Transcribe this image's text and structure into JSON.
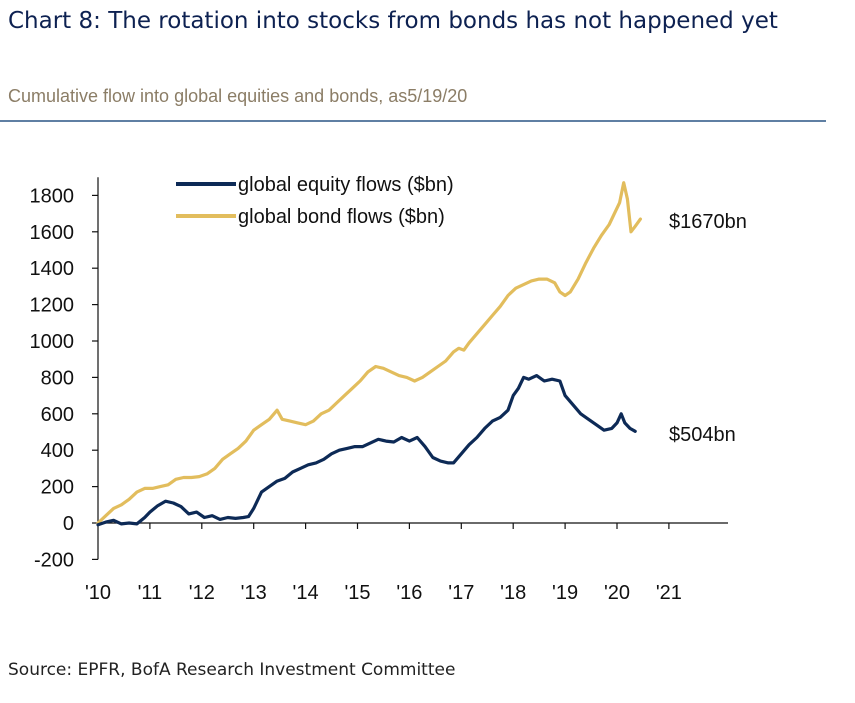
{
  "title": "Chart 8: The rotation into stocks from bonds has not happened yet",
  "subtitle": "Cumulative flow into global equities and bonds, as5/19/20",
  "source": "Source: EPFR, BofA Research Investment Committee",
  "chart_data": {
    "type": "line",
    "ylim": [
      -200,
      1900
    ],
    "y_ticks": [
      "1800",
      "1600",
      "1400",
      "1200",
      "1000",
      "800",
      "600",
      "400",
      "200",
      "0",
      "-200"
    ],
    "x_ticks": [
      "'10",
      "'11",
      "'12",
      "'13",
      "'14",
      "'15",
      "'16",
      "'17",
      "'18",
      "'19",
      "'20",
      "'21"
    ],
    "xlim": [
      2010,
      2021.5
    ],
    "grid": false,
    "legend_position": "top-center",
    "series": [
      {
        "name": "global equity flows ($bn)",
        "color": "#0d2a56",
        "end_label": "$504bn",
        "points": [
          [
            2010.0,
            -10
          ],
          [
            2010.15,
            5
          ],
          [
            2010.3,
            15
          ],
          [
            2010.45,
            -5
          ],
          [
            2010.6,
            0
          ],
          [
            2010.75,
            -5
          ],
          [
            2010.9,
            30
          ],
          [
            2011.0,
            60
          ],
          [
            2011.15,
            95
          ],
          [
            2011.3,
            120
          ],
          [
            2011.45,
            110
          ],
          [
            2011.6,
            90
          ],
          [
            2011.75,
            50
          ],
          [
            2011.9,
            60
          ],
          [
            2012.05,
            30
          ],
          [
            2012.2,
            40
          ],
          [
            2012.35,
            20
          ],
          [
            2012.5,
            30
          ],
          [
            2012.65,
            25
          ],
          [
            2012.8,
            30
          ],
          [
            2012.9,
            35
          ],
          [
            2013.0,
            80
          ],
          [
            2013.15,
            170
          ],
          [
            2013.3,
            200
          ],
          [
            2013.45,
            230
          ],
          [
            2013.6,
            245
          ],
          [
            2013.75,
            280
          ],
          [
            2013.9,
            300
          ],
          [
            2014.05,
            320
          ],
          [
            2014.2,
            330
          ],
          [
            2014.35,
            350
          ],
          [
            2014.5,
            380
          ],
          [
            2014.65,
            400
          ],
          [
            2014.8,
            410
          ],
          [
            2014.95,
            420
          ],
          [
            2015.1,
            420
          ],
          [
            2015.25,
            440
          ],
          [
            2015.4,
            460
          ],
          [
            2015.55,
            450
          ],
          [
            2015.7,
            445
          ],
          [
            2015.85,
            470
          ],
          [
            2016.0,
            450
          ],
          [
            2016.15,
            470
          ],
          [
            2016.3,
            420
          ],
          [
            2016.45,
            360
          ],
          [
            2016.6,
            340
          ],
          [
            2016.75,
            330
          ],
          [
            2016.85,
            330
          ],
          [
            2017.0,
            380
          ],
          [
            2017.15,
            430
          ],
          [
            2017.3,
            470
          ],
          [
            2017.45,
            520
          ],
          [
            2017.6,
            560
          ],
          [
            2017.75,
            580
          ],
          [
            2017.9,
            620
          ],
          [
            2018.0,
            700
          ],
          [
            2018.1,
            740
          ],
          [
            2018.2,
            800
          ],
          [
            2018.3,
            790
          ],
          [
            2018.45,
            810
          ],
          [
            2018.6,
            780
          ],
          [
            2018.75,
            790
          ],
          [
            2018.9,
            780
          ],
          [
            2019.0,
            700
          ],
          [
            2019.15,
            650
          ],
          [
            2019.3,
            600
          ],
          [
            2019.45,
            570
          ],
          [
            2019.6,
            540
          ],
          [
            2019.75,
            510
          ],
          [
            2019.9,
            520
          ],
          [
            2020.0,
            550
          ],
          [
            2020.08,
            600
          ],
          [
            2020.15,
            550
          ],
          [
            2020.25,
            520
          ],
          [
            2020.35,
            504
          ]
        ]
      },
      {
        "name": "global bond flows ($bn)",
        "color": "#e2bd5d",
        "end_label": "$1670bn",
        "points": [
          [
            2010.0,
            0
          ],
          [
            2010.15,
            40
          ],
          [
            2010.3,
            80
          ],
          [
            2010.45,
            100
          ],
          [
            2010.6,
            130
          ],
          [
            2010.75,
            170
          ],
          [
            2010.9,
            190
          ],
          [
            2011.05,
            190
          ],
          [
            2011.2,
            200
          ],
          [
            2011.35,
            210
          ],
          [
            2011.5,
            240
          ],
          [
            2011.65,
            250
          ],
          [
            2011.8,
            250
          ],
          [
            2011.95,
            255
          ],
          [
            2012.1,
            270
          ],
          [
            2012.25,
            300
          ],
          [
            2012.4,
            350
          ],
          [
            2012.55,
            380
          ],
          [
            2012.7,
            410
          ],
          [
            2012.85,
            450
          ],
          [
            2013.0,
            510
          ],
          [
            2013.15,
            540
          ],
          [
            2013.3,
            570
          ],
          [
            2013.45,
            620
          ],
          [
            2013.55,
            570
          ],
          [
            2013.7,
            560
          ],
          [
            2013.85,
            550
          ],
          [
            2014.0,
            540
          ],
          [
            2014.15,
            560
          ],
          [
            2014.3,
            600
          ],
          [
            2014.45,
            620
          ],
          [
            2014.6,
            660
          ],
          [
            2014.75,
            700
          ],
          [
            2014.9,
            740
          ],
          [
            2015.05,
            780
          ],
          [
            2015.2,
            830
          ],
          [
            2015.35,
            860
          ],
          [
            2015.5,
            850
          ],
          [
            2015.65,
            830
          ],
          [
            2015.8,
            810
          ],
          [
            2015.95,
            800
          ],
          [
            2016.1,
            780
          ],
          [
            2016.25,
            800
          ],
          [
            2016.4,
            830
          ],
          [
            2016.55,
            860
          ],
          [
            2016.7,
            890
          ],
          [
            2016.85,
            940
          ],
          [
            2016.95,
            960
          ],
          [
            2017.05,
            950
          ],
          [
            2017.15,
            990
          ],
          [
            2017.3,
            1040
          ],
          [
            2017.45,
            1090
          ],
          [
            2017.6,
            1140
          ],
          [
            2017.75,
            1190
          ],
          [
            2017.9,
            1250
          ],
          [
            2018.05,
            1290
          ],
          [
            2018.2,
            1310
          ],
          [
            2018.35,
            1330
          ],
          [
            2018.5,
            1340
          ],
          [
            2018.65,
            1340
          ],
          [
            2018.8,
            1320
          ],
          [
            2018.9,
            1270
          ],
          [
            2019.0,
            1250
          ],
          [
            2019.1,
            1270
          ],
          [
            2019.25,
            1340
          ],
          [
            2019.4,
            1430
          ],
          [
            2019.55,
            1510
          ],
          [
            2019.7,
            1580
          ],
          [
            2019.85,
            1640
          ],
          [
            2019.95,
            1700
          ],
          [
            2020.05,
            1760
          ],
          [
            2020.13,
            1870
          ],
          [
            2020.2,
            1780
          ],
          [
            2020.27,
            1600
          ],
          [
            2020.35,
            1630
          ],
          [
            2020.45,
            1670
          ]
        ]
      }
    ]
  }
}
